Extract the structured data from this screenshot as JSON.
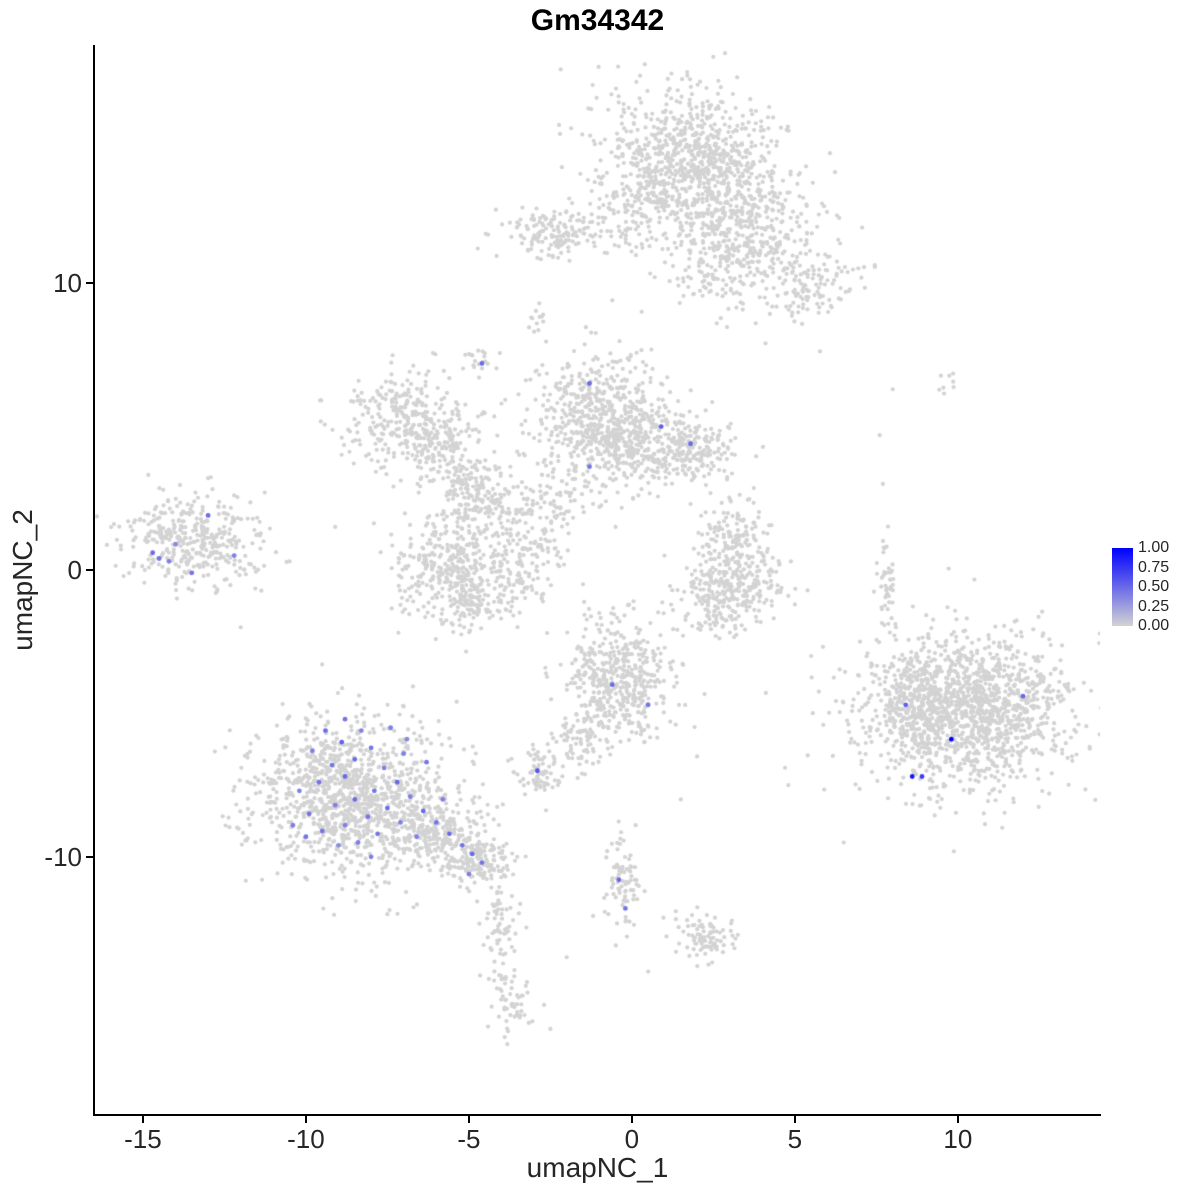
{
  "title": "Gm34342",
  "axes": {
    "x_label": "umapNC_1",
    "y_label": "umapNC_2",
    "x_ticks": [
      -15,
      -10,
      -5,
      0,
      5,
      10
    ],
    "y_ticks": [
      10,
      0,
      -10
    ]
  },
  "legend": {
    "labels": [
      "1.00",
      "0.75",
      "0.50",
      "0.25",
      "0.00"
    ],
    "high_color": "#0000ff",
    "low_color": "#d3d3d3"
  },
  "chart_data": {
    "type": "scatter",
    "title": "Gm34342",
    "xlabel": "umapNC_1",
    "ylabel": "umapNC_2",
    "xlim": [
      -16.47,
      14.36
    ],
    "ylim": [
      -19.0,
      18.3
    ],
    "grid": false,
    "legend_position": "right",
    "point_radius_px": 2.1,
    "highlight_radius_px": 2.4,
    "base_color": "#d3d3d3",
    "high_color": "#0000ff",
    "clusters": [
      {
        "x": 1.8,
        "y": 14.2,
        "sx": 1.4,
        "sy": 1.2,
        "n": 900
      },
      {
        "x": 3.6,
        "y": 12.0,
        "sx": 1.0,
        "sy": 0.9,
        "n": 300
      },
      {
        "x": 5.3,
        "y": 10.0,
        "sx": 0.8,
        "sy": 0.7,
        "n": 150
      },
      {
        "x": -2.4,
        "y": 11.8,
        "sx": 0.8,
        "sy": 0.45,
        "n": 150
      },
      {
        "x": 0.0,
        "y": 12.2,
        "sx": 0.7,
        "sy": 0.7,
        "n": 80
      },
      {
        "x": 2.6,
        "y": 10.6,
        "sx": 0.8,
        "sy": 0.8,
        "n": 120
      },
      {
        "x": -1.1,
        "y": 5.3,
        "sx": 1.0,
        "sy": 1.1,
        "n": 550
      },
      {
        "x": 1.5,
        "y": 4.2,
        "sx": 0.8,
        "sy": 0.7,
        "n": 280
      },
      {
        "x": -0.2,
        "y": 4.5,
        "sx": 0.6,
        "sy": 0.6,
        "n": 120
      },
      {
        "x": -6.9,
        "y": 5.2,
        "sx": 1.0,
        "sy": 0.8,
        "n": 320
      },
      {
        "x": -5.8,
        "y": 4.1,
        "sx": 0.6,
        "sy": 0.6,
        "n": 100
      },
      {
        "x": -5.0,
        "y": 2.9,
        "sx": 0.7,
        "sy": 0.5,
        "n": 110
      },
      {
        "x": -4.1,
        "y": 1.8,
        "sx": 0.7,
        "sy": 0.6,
        "n": 130
      },
      {
        "x": -5.6,
        "y": 0.4,
        "sx": 0.85,
        "sy": 0.8,
        "n": 240
      },
      {
        "x": -4.9,
        "y": -0.9,
        "sx": 0.9,
        "sy": 0.55,
        "n": 220
      },
      {
        "x": -3.2,
        "y": 0.6,
        "sx": 0.6,
        "sy": 0.6,
        "n": 90
      },
      {
        "x": -2.2,
        "y": 2.4,
        "sx": 0.5,
        "sy": 0.6,
        "n": 60
      },
      {
        "x": -13.5,
        "y": 1.0,
        "sx": 1.1,
        "sy": 0.8,
        "n": 380
      },
      {
        "x": 3.2,
        "y": 0.9,
        "sx": 0.55,
        "sy": 0.75,
        "n": 170
      },
      {
        "x": 3.1,
        "y": -0.7,
        "sx": 0.8,
        "sy": 0.5,
        "n": 220
      },
      {
        "x": 2.6,
        "y": -1.7,
        "sx": 0.4,
        "sy": 0.35,
        "n": 50
      },
      {
        "x": -0.4,
        "y": -3.8,
        "sx": 0.8,
        "sy": 1.0,
        "n": 480
      },
      {
        "x": -1.7,
        "y": -6.1,
        "sx": 0.4,
        "sy": 0.5,
        "n": 70
      },
      {
        "x": -2.8,
        "y": -7.1,
        "sx": 0.35,
        "sy": 0.4,
        "n": 70
      },
      {
        "x": -8.7,
        "y": -7.9,
        "sx": 1.5,
        "sy": 1.3,
        "n": 1200
      },
      {
        "x": -6.1,
        "y": -9.2,
        "sx": 0.8,
        "sy": 0.6,
        "n": 220
      },
      {
        "x": -4.8,
        "y": -10.1,
        "sx": 0.6,
        "sy": 0.4,
        "n": 150
      },
      {
        "x": -4.1,
        "y": -12.3,
        "sx": 0.3,
        "sy": 1.0,
        "n": 80
      },
      {
        "x": -3.7,
        "y": -14.9,
        "sx": 0.3,
        "sy": 0.6,
        "n": 50
      },
      {
        "x": -0.3,
        "y": -10.8,
        "sx": 0.25,
        "sy": 1.0,
        "n": 80
      },
      {
        "x": 2.3,
        "y": -12.8,
        "sx": 0.5,
        "sy": 0.4,
        "n": 90
      },
      {
        "x": 10.3,
        "y": -4.9,
        "sx": 1.6,
        "sy": 1.3,
        "n": 1400
      },
      {
        "x": 8.6,
        "y": -4.6,
        "sx": 0.5,
        "sy": 0.8,
        "n": 150
      },
      {
        "x": 10.3,
        "y": -4.9,
        "sx": 2.6,
        "sy": 2.2,
        "n": 60
      },
      {
        "x": 7.8,
        "y": -0.5,
        "sx": 0.15,
        "sy": 0.9,
        "n": 45
      },
      {
        "x": -4.6,
        "y": 7.3,
        "sx": 0.3,
        "sy": 0.3,
        "n": 20
      },
      {
        "x": -2.9,
        "y": 8.7,
        "sx": 0.3,
        "sy": 0.25,
        "n": 12
      },
      {
        "x": 9.6,
        "y": 6.5,
        "sx": 0.25,
        "sy": 0.35,
        "n": 8
      }
    ],
    "sparse_points": [
      [
        -0.6,
        9.4
      ],
      [
        0.3,
        9.0
      ],
      [
        3.8,
        8.6
      ],
      [
        4.1,
        7.9
      ],
      [
        7.6,
        4.7
      ],
      [
        7.7,
        3.0
      ],
      [
        -9.1,
        1.5
      ],
      [
        -10.5,
        0.3
      ],
      [
        -11.3,
        1.0
      ],
      [
        5.0,
        -1.2
      ],
      [
        5.5,
        -3.0
      ],
      [
        2.0,
        -6.5
      ],
      [
        1.5,
        -8.0
      ],
      [
        4.8,
        -7.5
      ],
      [
        -2.0,
        -13.5
      ],
      [
        -2.5,
        -16.0
      ],
      [
        0.5,
        -14.0
      ],
      [
        6.5,
        -9.5
      ],
      [
        7.0,
        -2.5
      ],
      [
        -12.0,
        -2.0
      ],
      [
        -7.5,
        -12.0
      ],
      [
        0.2,
        2.6
      ],
      [
        -0.5,
        1.5
      ],
      [
        1.0,
        0.5
      ],
      [
        -1.5,
        -0.5
      ],
      [
        1.8,
        2.3
      ],
      [
        -2.6,
        -2.2
      ],
      [
        -1.0,
        -1.5
      ],
      [
        13.5,
        -6.5
      ],
      [
        12.8,
        -7.8
      ],
      [
        8.0,
        6.3
      ],
      [
        4.3,
        11.2
      ],
      [
        6.0,
        10.1
      ],
      [
        -4.0,
        5.8
      ],
      [
        -3.0,
        4.6
      ],
      [
        -13.0,
        3.2
      ],
      [
        -12.2,
        2.6
      ]
    ],
    "highlights": [
      [
        -14.7,
        0.6,
        0.5
      ],
      [
        -14.5,
        0.4,
        0.45
      ],
      [
        -14.2,
        0.3,
        0.4
      ],
      [
        -14.0,
        0.9,
        0.35
      ],
      [
        -13.5,
        -0.1,
        0.45
      ],
      [
        -13.0,
        1.9,
        0.5
      ],
      [
        -12.2,
        0.5,
        0.4
      ],
      [
        -4.6,
        7.2,
        0.5
      ],
      [
        -1.3,
        6.5,
        0.5
      ],
      [
        0.9,
        5.0,
        0.55
      ],
      [
        1.8,
        4.4,
        0.5
      ],
      [
        -1.3,
        3.6,
        0.45
      ],
      [
        -0.6,
        -4.0,
        0.5
      ],
      [
        0.5,
        -4.7,
        0.45
      ],
      [
        -2.9,
        -7.0,
        0.6
      ],
      [
        -0.4,
        -10.8,
        0.5
      ],
      [
        -0.2,
        -11.8,
        0.45
      ],
      [
        -8.8,
        -5.2,
        0.45
      ],
      [
        -9.4,
        -5.6,
        0.5
      ],
      [
        -8.3,
        -5.6,
        0.4
      ],
      [
        -8.9,
        -6.0,
        0.55
      ],
      [
        -9.8,
        -6.3,
        0.4
      ],
      [
        -8.0,
        -6.2,
        0.45
      ],
      [
        -8.5,
        -6.6,
        0.5
      ],
      [
        -9.2,
        -6.8,
        0.45
      ],
      [
        -7.6,
        -6.9,
        0.4
      ],
      [
        -8.8,
        -7.2,
        0.5
      ],
      [
        -9.6,
        -7.4,
        0.45
      ],
      [
        -10.2,
        -7.7,
        0.4
      ],
      [
        -7.2,
        -7.4,
        0.5
      ],
      [
        -7.9,
        -7.7,
        0.45
      ],
      [
        -8.5,
        -8.0,
        0.5
      ],
      [
        -9.1,
        -8.2,
        0.4
      ],
      [
        -9.9,
        -8.5,
        0.45
      ],
      [
        -6.8,
        -7.9,
        0.4
      ],
      [
        -7.5,
        -8.3,
        0.5
      ],
      [
        -8.1,
        -8.6,
        0.45
      ],
      [
        -8.8,
        -8.9,
        0.4
      ],
      [
        -9.5,
        -9.1,
        0.45
      ],
      [
        -6.4,
        -8.4,
        0.5
      ],
      [
        -7.1,
        -8.8,
        0.4
      ],
      [
        -7.8,
        -9.2,
        0.45
      ],
      [
        -8.4,
        -9.5,
        0.4
      ],
      [
        -6.0,
        -8.8,
        0.45
      ],
      [
        -6.6,
        -9.3,
        0.4
      ],
      [
        -5.6,
        -9.2,
        0.5
      ],
      [
        -5.2,
        -9.6,
        0.45
      ],
      [
        -4.9,
        -9.9,
        0.5
      ],
      [
        -4.6,
        -10.2,
        0.45
      ],
      [
        -5.0,
        -10.6,
        0.4
      ],
      [
        -10.4,
        -8.9,
        0.4
      ],
      [
        -6.3,
        -6.7,
        0.45
      ],
      [
        -7.0,
        -6.4,
        0.4
      ],
      [
        -9.0,
        -9.6,
        0.35
      ],
      [
        -8.0,
        -10.0,
        0.4
      ],
      [
        -10.0,
        -9.3,
        0.45
      ],
      [
        -5.8,
        -8.0,
        0.4
      ],
      [
        -6.9,
        -5.9,
        0.35
      ],
      [
        -7.4,
        -5.5,
        0.4
      ],
      [
        8.4,
        -4.7,
        0.55
      ],
      [
        9.8,
        -5.9,
        1.0
      ],
      [
        8.6,
        -7.2,
        0.9
      ],
      [
        8.9,
        -7.2,
        0.7
      ],
      [
        12.0,
        -4.4,
        0.5
      ]
    ]
  }
}
